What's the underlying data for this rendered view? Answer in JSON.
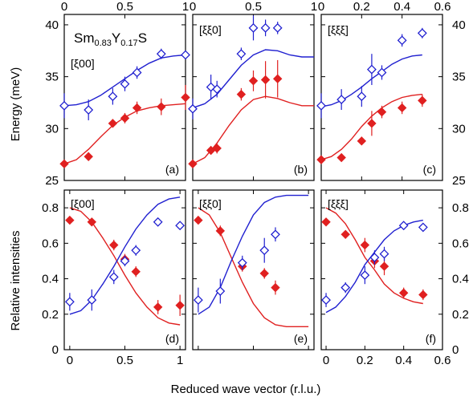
{
  "figure": {
    "xlabel": "Reduced wave vector (r.l.u.)",
    "ylabel_top": "Energy (meV)",
    "ylabel_bottom": "Relative intensities",
    "compound": {
      "base1": "Sm",
      "sub1": "0.83",
      "base2": "Y",
      "sub2": "0.17",
      "base3": "S"
    },
    "colors": {
      "filled": "#e02020",
      "open": "#2020d0",
      "line_red": "#e02020",
      "line_blue": "#2020d0"
    }
  },
  "chart_data": [
    {
      "type": "scatter",
      "panel": "(a)",
      "direction": "[ξ00]",
      "row": "energy",
      "xlim": [
        0,
        1
      ],
      "ylim": [
        25,
        41
      ],
      "xticks": [
        0,
        0.5,
        1
      ],
      "xtick_labels": [
        "0",
        "0.5",
        "1"
      ],
      "yticks": [
        25,
        30,
        35,
        40
      ],
      "ytick_labels": [
        "25",
        "30",
        "35",
        "40"
      ],
      "series": [
        {
          "marker": "filled-diamond",
          "x": [
            0,
            0.2,
            0.4,
            0.5,
            0.6,
            0.8,
            1.0
          ],
          "y": [
            26.6,
            27.3,
            30.5,
            31.0,
            32.0,
            32.1,
            33.0
          ],
          "err": [
            0.3,
            0.4,
            0.4,
            0.5,
            0.6,
            0.8,
            1.2
          ]
        },
        {
          "marker": "open-diamond",
          "x": [
            0,
            0.2,
            0.4,
            0.5,
            0.6,
            0.8,
            1.0
          ],
          "y": [
            32.2,
            31.8,
            33.1,
            34.3,
            35.4,
            37.2,
            37.1
          ],
          "err": [
            1.2,
            1.0,
            0.8,
            0.7,
            0.6,
            0.5,
            0.3
          ]
        },
        {
          "marker": "line-red",
          "x": [
            0,
            0.1,
            0.2,
            0.3,
            0.4,
            0.5,
            0.6,
            0.7,
            0.8,
            0.9,
            1.0
          ],
          "y": [
            26.6,
            27.0,
            28.0,
            29.2,
            30.3,
            31.1,
            31.7,
            32.0,
            32.2,
            32.3,
            32.4
          ]
        },
        {
          "marker": "line-blue",
          "x": [
            0,
            0.1,
            0.2,
            0.3,
            0.4,
            0.5,
            0.6,
            0.7,
            0.8,
            0.9,
            1.0
          ],
          "y": [
            32.2,
            32.3,
            32.6,
            33.2,
            34.0,
            34.8,
            35.6,
            36.3,
            36.8,
            37.0,
            37.1
          ]
        }
      ]
    },
    {
      "type": "scatter",
      "panel": "(b)",
      "direction": "[ξξ0]",
      "row": "energy",
      "xlim": [
        0,
        1
      ],
      "ylim": [
        25,
        41
      ],
      "xticks": [
        0,
        0.5,
        1
      ],
      "xtick_labels": [
        "0",
        "0.5",
        "1"
      ],
      "yticks": [
        25,
        30,
        35,
        40
      ],
      "ytick_labels": [],
      "series": [
        {
          "marker": "filled-diamond",
          "x": [
            0,
            0.15,
            0.2,
            0.4,
            0.5,
            0.6,
            0.7
          ],
          "y": [
            26.6,
            27.9,
            28.1,
            33.3,
            34.6,
            34.7,
            34.8
          ],
          "err": [
            0.3,
            0.4,
            0.5,
            0.6,
            1.0,
            1.8,
            1.8
          ]
        },
        {
          "marker": "open-diamond",
          "x": [
            0,
            0.15,
            0.2,
            0.4,
            0.5,
            0.6,
            0.7
          ],
          "y": [
            31.9,
            34.0,
            33.8,
            37.2,
            39.7,
            39.7,
            39.7
          ],
          "err": [
            1.0,
            1.2,
            0.8,
            0.6,
            1.2,
            0.8,
            0.6
          ]
        },
        {
          "marker": "line-red",
          "x": [
            0,
            0.1,
            0.2,
            0.3,
            0.4,
            0.5,
            0.6,
            0.7,
            0.8,
            0.9,
            1.0
          ],
          "y": [
            26.6,
            27.2,
            28.6,
            30.3,
            31.8,
            32.8,
            33.1,
            32.9,
            32.5,
            32.2,
            32.2
          ]
        },
        {
          "marker": "line-blue",
          "x": [
            0,
            0.1,
            0.2,
            0.3,
            0.4,
            0.5,
            0.6,
            0.7,
            0.8,
            0.9,
            1.0
          ],
          "y": [
            32.0,
            32.4,
            33.3,
            34.7,
            36.1,
            37.1,
            37.6,
            37.5,
            37.1,
            36.9,
            36.9
          ]
        }
      ]
    },
    {
      "type": "scatter",
      "panel": "(c)",
      "direction": "[ξξξ]",
      "row": "energy",
      "xlim": [
        0,
        0.6
      ],
      "ylim": [
        25,
        41
      ],
      "xticks": [
        0,
        0.2,
        0.4,
        0.6
      ],
      "xtick_labels": [
        "0",
        "0.2",
        "0.4",
        "0.6"
      ],
      "yticks": [
        25,
        30,
        35,
        40
      ],
      "ytick_labels": [
        "25",
        "30",
        "35",
        "40"
      ],
      "series": [
        {
          "marker": "filled-diamond",
          "x": [
            0,
            0.1,
            0.2,
            0.25,
            0.3,
            0.4,
            0.5
          ],
          "y": [
            27.0,
            27.2,
            28.8,
            30.5,
            31.6,
            32.0,
            32.7
          ],
          "err": [
            0.3,
            0.3,
            0.4,
            1.2,
            0.6,
            0.6,
            0.6
          ]
        },
        {
          "marker": "open-diamond",
          "x": [
            0,
            0.1,
            0.2,
            0.25,
            0.3,
            0.4,
            0.5
          ],
          "y": [
            32.2,
            32.8,
            33.1,
            35.7,
            35.4,
            38.5,
            39.2
          ],
          "err": [
            1.2,
            1.0,
            1.0,
            1.5,
            0.7,
            0.6,
            0.5
          ]
        },
        {
          "marker": "line-red",
          "x": [
            0,
            0.05,
            0.1,
            0.15,
            0.2,
            0.25,
            0.3,
            0.35,
            0.4,
            0.45,
            0.5
          ],
          "y": [
            27.0,
            27.3,
            28.0,
            29.0,
            30.2,
            31.2,
            32.0,
            32.6,
            33.0,
            33.2,
            33.3
          ]
        },
        {
          "marker": "line-blue",
          "x": [
            0,
            0.05,
            0.1,
            0.15,
            0.2,
            0.25,
            0.3,
            0.35,
            0.4,
            0.45,
            0.5
          ],
          "y": [
            32.1,
            32.3,
            32.7,
            33.3,
            34.0,
            34.8,
            35.5,
            36.2,
            36.7,
            37.0,
            37.1
          ]
        }
      ]
    },
    {
      "type": "scatter",
      "panel": "(d)",
      "direction": "[ξ00]",
      "row": "intensity",
      "xlim": [
        -0.05,
        1.05
      ],
      "ylim": [
        0,
        0.9
      ],
      "xticks": [
        0,
        0.5,
        1
      ],
      "xtick_labels": [
        "0",
        "0.5",
        "1"
      ],
      "yticks": [
        0,
        0.2,
        0.4,
        0.6,
        0.8
      ],
      "ytick_labels": [
        "0",
        "0.2",
        "0.4",
        "0.6",
        "0.8"
      ],
      "series": [
        {
          "marker": "filled-diamond",
          "x": [
            0,
            0.2,
            0.4,
            0.5,
            0.6,
            0.8,
            1.0
          ],
          "y": [
            0.73,
            0.72,
            0.59,
            0.51,
            0.44,
            0.24,
            0.25
          ],
          "err": [
            0.02,
            0.02,
            0.03,
            0.03,
            0.03,
            0.04,
            0.06
          ]
        },
        {
          "marker": "open-diamond",
          "x": [
            0,
            0.2,
            0.4,
            0.5,
            0.6,
            0.8,
            1.0
          ],
          "y": [
            0.27,
            0.28,
            0.41,
            0.5,
            0.56,
            0.72,
            0.7
          ],
          "err": [
            0.05,
            0.06,
            0.04,
            0.03,
            0.03,
            0.02,
            0.02
          ]
        },
        {
          "marker": "line-red",
          "x": [
            0,
            0.1,
            0.2,
            0.3,
            0.4,
            0.5,
            0.6,
            0.7,
            0.8,
            0.9,
            1.0
          ],
          "y": [
            0.8,
            0.78,
            0.72,
            0.63,
            0.53,
            0.42,
            0.32,
            0.24,
            0.18,
            0.15,
            0.14
          ]
        },
        {
          "marker": "line-blue",
          "x": [
            0,
            0.1,
            0.2,
            0.3,
            0.4,
            0.5,
            0.6,
            0.7,
            0.8,
            0.9,
            1.0
          ],
          "y": [
            0.2,
            0.22,
            0.28,
            0.37,
            0.47,
            0.58,
            0.68,
            0.76,
            0.82,
            0.85,
            0.86
          ]
        }
      ]
    },
    {
      "type": "scatter",
      "panel": "(e)",
      "direction": "[ξξ0]",
      "row": "intensity",
      "xlim": [
        -0.05,
        1.05
      ],
      "ylim": [
        0,
        0.9
      ],
      "xticks": [
        0,
        0.5,
        1
      ],
      "xtick_labels": [],
      "yticks": [
        0,
        0.2,
        0.4,
        0.6,
        0.8
      ],
      "ytick_labels": [],
      "series": [
        {
          "marker": "filled-diamond",
          "x": [
            0,
            0.2,
            0.4,
            0.6,
            0.7
          ],
          "y": [
            0.73,
            0.67,
            0.47,
            0.43,
            0.35
          ],
          "err": [
            0.02,
            0.03,
            0.03,
            0.03,
            0.04
          ]
        },
        {
          "marker": "open-diamond",
          "x": [
            0,
            0.2,
            0.4,
            0.6,
            0.7
          ],
          "y": [
            0.28,
            0.33,
            0.49,
            0.56,
            0.65
          ],
          "err": [
            0.07,
            0.07,
            0.04,
            0.07,
            0.04
          ]
        },
        {
          "marker": "line-red",
          "x": [
            0,
            0.1,
            0.2,
            0.3,
            0.4,
            0.5,
            0.6,
            0.7,
            0.8,
            0.9,
            1.0
          ],
          "y": [
            0.8,
            0.76,
            0.66,
            0.52,
            0.38,
            0.26,
            0.18,
            0.14,
            0.13,
            0.13,
            0.13
          ]
        },
        {
          "marker": "line-blue",
          "x": [
            0,
            0.1,
            0.2,
            0.3,
            0.4,
            0.5,
            0.6,
            0.7,
            0.8,
            0.9,
            1.0
          ],
          "y": [
            0.2,
            0.24,
            0.35,
            0.5,
            0.64,
            0.76,
            0.83,
            0.86,
            0.87,
            0.87,
            0.87
          ]
        }
      ]
    },
    {
      "type": "scatter",
      "panel": "(f)",
      "direction": "[ξξξ]",
      "row": "intensity",
      "xlim": [
        -0.025,
        0.6
      ],
      "ylim": [
        0,
        0.9
      ],
      "xticks": [
        0,
        0.2,
        0.4,
        0.6
      ],
      "xtick_labels": [
        "0",
        "0.2",
        "0.4",
        "0.6"
      ],
      "yticks": [
        0,
        0.2,
        0.4,
        0.6,
        0.8
      ],
      "ytick_labels": [
        "0",
        "0.2",
        "0.4",
        "0.6",
        "0.8"
      ],
      "series": [
        {
          "marker": "filled-diamond",
          "x": [
            0,
            0.1,
            0.2,
            0.25,
            0.3,
            0.4,
            0.5
          ],
          "y": [
            0.72,
            0.65,
            0.59,
            0.5,
            0.47,
            0.32,
            0.31
          ],
          "err": [
            0.02,
            0.02,
            0.04,
            0.04,
            0.05,
            0.03,
            0.03
          ]
        },
        {
          "marker": "open-diamond",
          "x": [
            0,
            0.1,
            0.2,
            0.25,
            0.3,
            0.4,
            0.5
          ],
          "y": [
            0.28,
            0.35,
            0.42,
            0.52,
            0.54,
            0.7,
            0.69
          ],
          "err": [
            0.04,
            0.03,
            0.05,
            0.04,
            0.04,
            0.02,
            0.02
          ]
        },
        {
          "marker": "line-red",
          "x": [
            0,
            0.05,
            0.1,
            0.15,
            0.2,
            0.25,
            0.3,
            0.35,
            0.4,
            0.45,
            0.5
          ],
          "y": [
            0.8,
            0.77,
            0.71,
            0.62,
            0.52,
            0.45,
            0.37,
            0.32,
            0.29,
            0.27,
            0.26
          ]
        },
        {
          "marker": "line-blue",
          "x": [
            0,
            0.05,
            0.1,
            0.15,
            0.2,
            0.25,
            0.3,
            0.35,
            0.4,
            0.45,
            0.5
          ],
          "y": [
            0.21,
            0.24,
            0.3,
            0.38,
            0.48,
            0.55,
            0.62,
            0.67,
            0.7,
            0.72,
            0.73
          ]
        }
      ]
    }
  ]
}
